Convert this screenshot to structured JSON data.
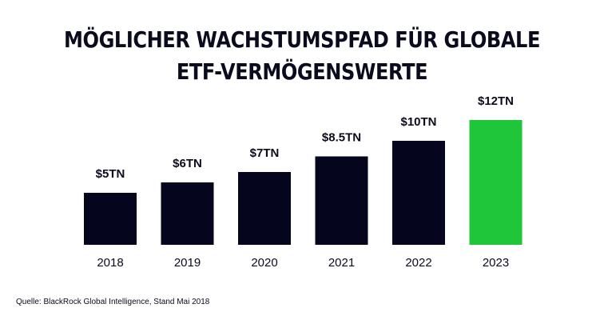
{
  "title_line1": "MÖGLICHER WACHSTUMSPFAD FÜR GLOBALE",
  "title_line2": "ETF-VERMÖGENSWERTE",
  "source": "Quelle: BlackRock Global Intelligence, Stand Mai 2018",
  "colors": {
    "bar": "#05051e",
    "highlight": "#1fc63a",
    "text": "#0b0b1e"
  },
  "chart_data": {
    "type": "bar",
    "title": "MÖGLICHER WACHSTUMSPFAD FÜR GLOBALE ETF-VERMÖGENSWERTE",
    "categories": [
      "2018",
      "2019",
      "2020",
      "2021",
      "2022",
      "2023"
    ],
    "values": [
      5,
      6,
      7,
      8.5,
      10,
      12
    ],
    "data_labels": [
      "$5TN",
      "$6TN",
      "$7TN",
      "$8.5TN",
      "$10TN",
      "$12TN"
    ],
    "highlight_index": 5,
    "xlabel": "",
    "ylabel": "",
    "ylim": [
      0,
      12
    ],
    "grid": false,
    "legend": "none"
  }
}
